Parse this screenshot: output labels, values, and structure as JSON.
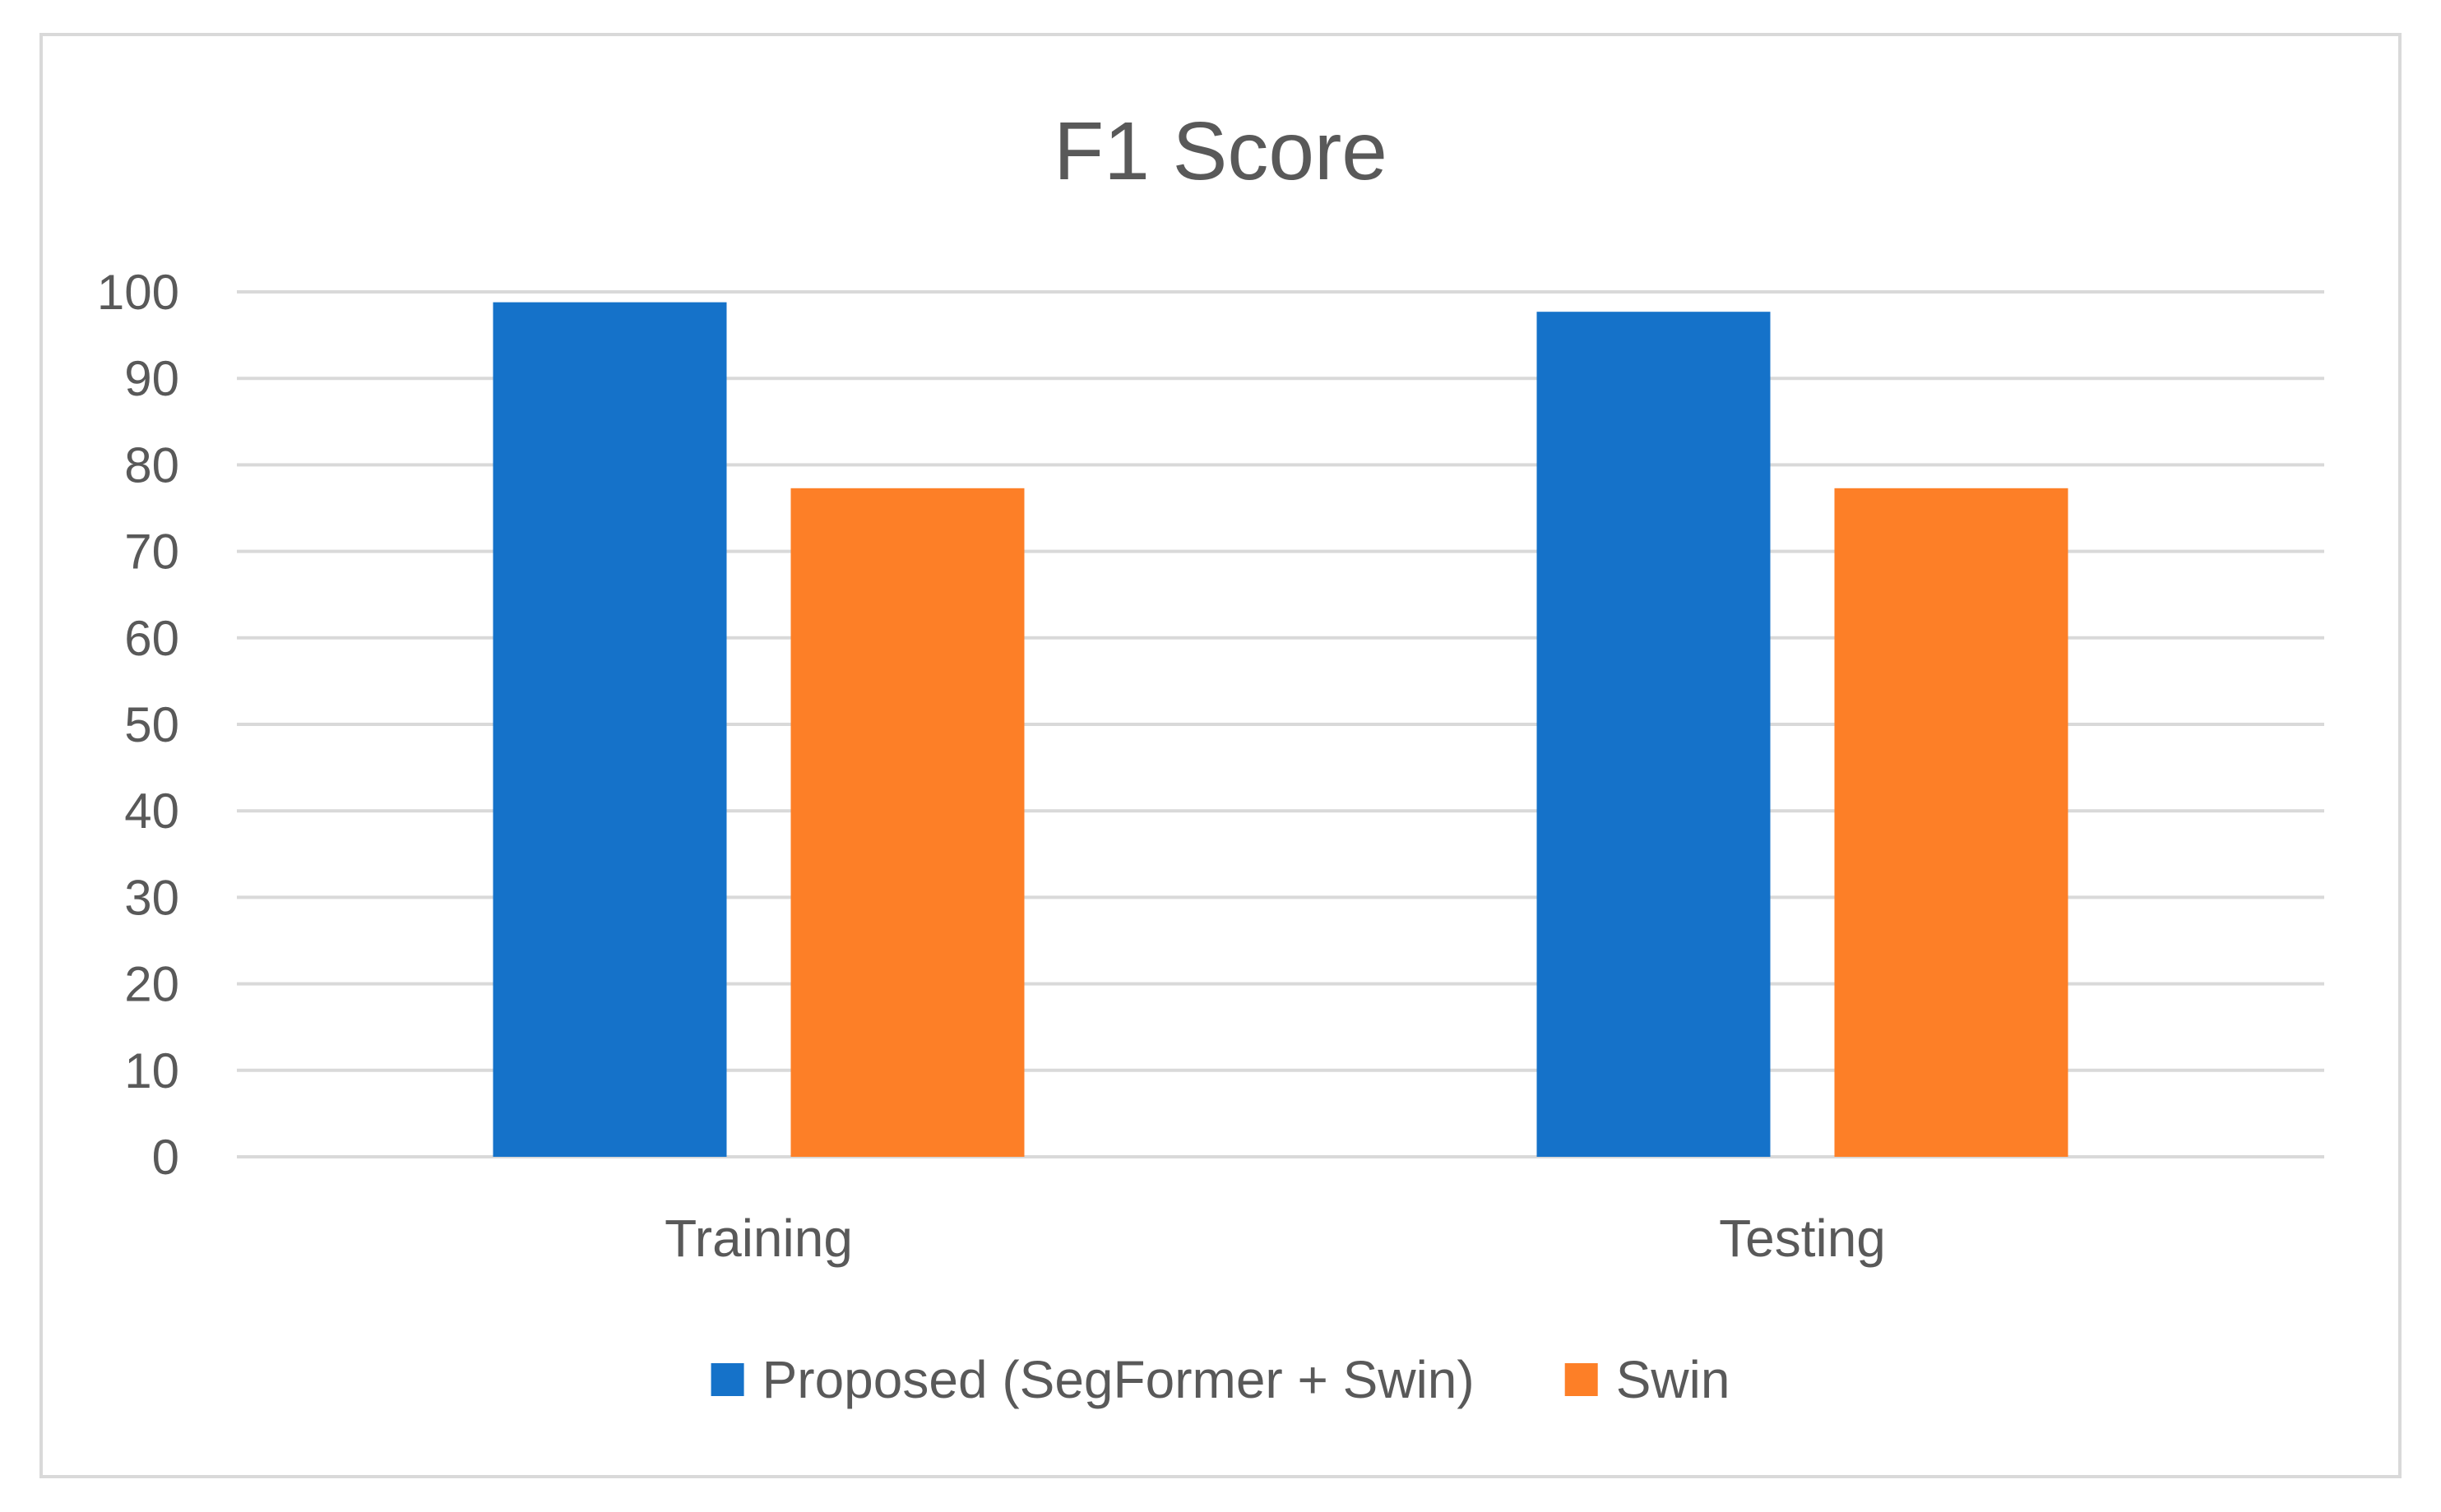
{
  "chart_data": {
    "type": "bar",
    "title": "F1 Score",
    "categories": [
      "Training",
      "Testing"
    ],
    "series": [
      {
        "name": "Proposed (SegFormer + Swin)",
        "values": [
          98.8,
          97.7
        ],
        "color": "#1572c9"
      },
      {
        "name": "Swin",
        "values": [
          77.3,
          77.3
        ],
        "color": "#fd7f27"
      }
    ],
    "ylim": [
      0,
      100
    ],
    "yticks": [
      0,
      10,
      20,
      30,
      40,
      50,
      60,
      70,
      80,
      90,
      100
    ],
    "grid": true,
    "legend_position": "bottom"
  }
}
